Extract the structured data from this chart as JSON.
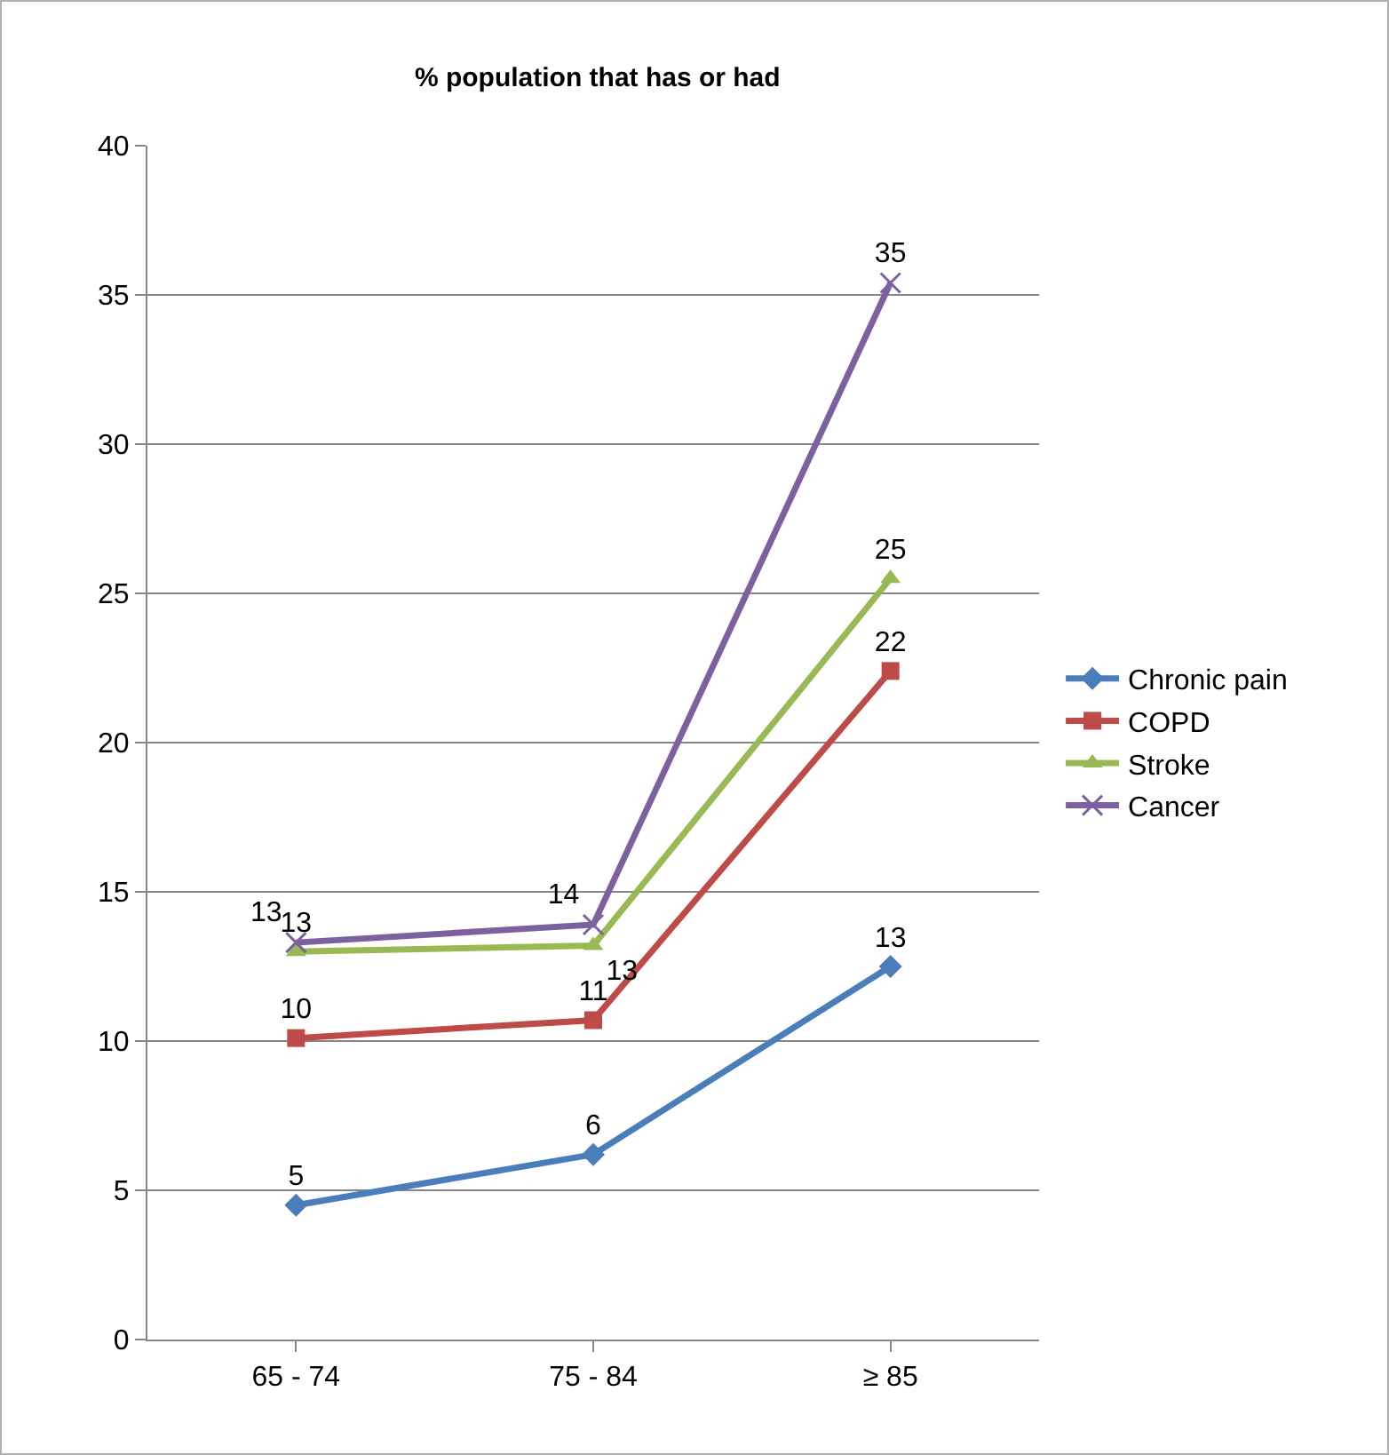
{
  "chart_data": {
    "type": "line",
    "title": "% population that has or had",
    "categories": [
      "65 - 74",
      "75 - 84",
      "≥ 85"
    ],
    "series": [
      {
        "name": "Chronic pain",
        "color": "#4a7ebb",
        "marker": "diamond",
        "values": [
          4.5,
          6.2,
          12.5
        ],
        "value_labels": [
          "5",
          "6",
          "13"
        ]
      },
      {
        "name": "COPD",
        "color": "#be4b48",
        "marker": "square",
        "values": [
          10.1,
          10.7,
          22.4
        ],
        "value_labels": [
          "10",
          "11",
          "22"
        ]
      },
      {
        "name": "Stroke",
        "color": "#98b954",
        "marker": "triangle",
        "values": [
          13.0,
          13.2,
          25.5
        ],
        "value_labels": [
          "13",
          "13",
          "25"
        ]
      },
      {
        "name": "Cancer",
        "color": "#7d60a0",
        "marker": "cross",
        "values": [
          13.3,
          13.9,
          35.4
        ],
        "value_labels": [
          "13",
          "14",
          "35"
        ]
      }
    ],
    "ylim": [
      0,
      40
    ],
    "yticks": [
      0,
      5,
      10,
      15,
      20,
      25,
      30,
      35,
      40
    ],
    "grid": "y",
    "legend": "right",
    "line_style": "solid"
  }
}
